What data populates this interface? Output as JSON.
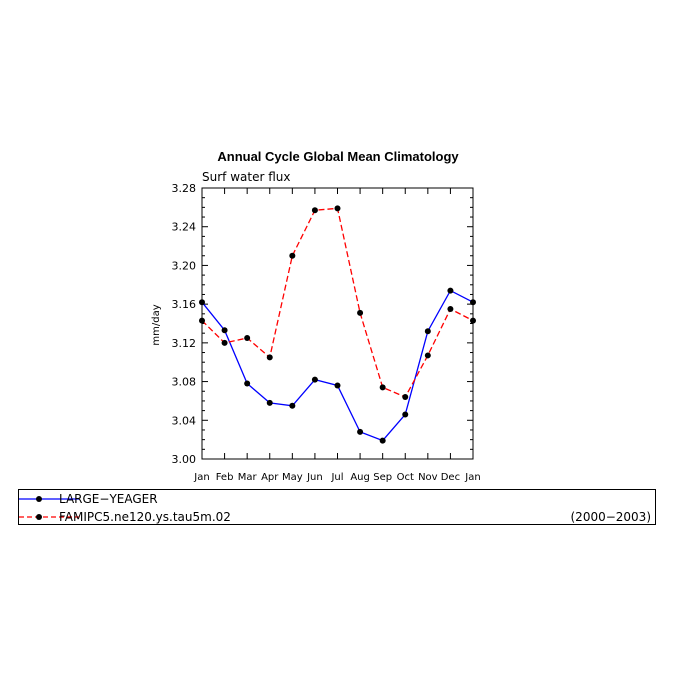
{
  "chart_data": {
    "type": "line",
    "title": "Annual Cycle Global Mean Climatology",
    "subtitle": "Surf water flux",
    "ylabel": "mm/day",
    "xlabel": "",
    "categories": [
      "Jan",
      "Feb",
      "Mar",
      "Apr",
      "May",
      "Jun",
      "Jul",
      "Aug",
      "Sep",
      "Oct",
      "Nov",
      "Dec",
      "Jan"
    ],
    "ylim": [
      3.0,
      3.28
    ],
    "yticks": [
      "3.00",
      "3.04",
      "3.08",
      "3.12",
      "3.16",
      "3.20",
      "3.24",
      "3.28"
    ],
    "grid": false,
    "legend_placement": "bottom",
    "series": [
      {
        "name": "LARGE−YEAGER",
        "color": "#0000ff",
        "dash": "solid",
        "values": [
          3.162,
          3.133,
          3.078,
          3.058,
          3.055,
          3.082,
          3.076,
          3.028,
          3.019,
          3.046,
          3.132,
          3.174,
          3.162
        ]
      },
      {
        "name": "FAMIPC5.ne120.ys.tau5m.02",
        "color": "#ff0000",
        "dash": "dashed",
        "values": [
          3.143,
          3.12,
          3.125,
          3.105,
          3.21,
          3.257,
          3.259,
          3.151,
          3.074,
          3.064,
          3.107,
          3.155,
          3.143
        ]
      }
    ]
  },
  "legend": {
    "period": "(2000−2003)"
  }
}
